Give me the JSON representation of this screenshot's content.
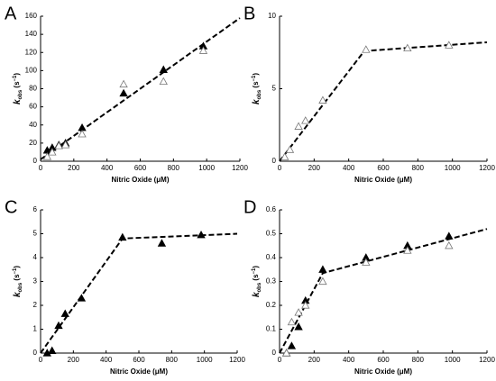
{
  "chart_data": [
    {
      "type": "scatter",
      "label": "A",
      "xlabel": "Nitric Oxide (μM)",
      "ylabel_parts": [
        "k",
        "obs",
        " (s",
        "−1",
        ")"
      ],
      "xlim": [
        0,
        1200
      ],
      "xticks": [
        0,
        200,
        400,
        600,
        800,
        1000,
        1200
      ],
      "ylim": [
        0,
        160
      ],
      "yticks": [
        0,
        20,
        40,
        60,
        80,
        100,
        120,
        140,
        160
      ],
      "x": [
        40,
        70,
        110,
        150,
        250,
        500,
        740,
        980
      ],
      "series": [
        {
          "marker": "filled",
          "color": "#000000",
          "values": [
            12,
            15,
            18,
            20,
            37,
            75,
            101,
            127
          ]
        },
        {
          "marker": "open",
          "color": "#777777",
          "values": [
            5,
            10,
            17,
            18,
            30,
            85,
            88,
            122
          ]
        }
      ],
      "fit": {
        "color": "#000000",
        "x": [
          0,
          1200
        ],
        "values": [
          2,
          158
        ]
      }
    },
    {
      "type": "scatter",
      "label": "B",
      "xlabel": "Nitric Oxide (μM)",
      "ylabel_parts": [
        "k",
        "obs",
        " (s",
        "−1",
        ")"
      ],
      "xlim": [
        0,
        1200
      ],
      "xticks": [
        0,
        200,
        400,
        600,
        800,
        1000,
        1200
      ],
      "ylim": [
        0,
        10
      ],
      "yticks": [
        0,
        5,
        10
      ],
      "x": [
        30,
        60,
        110,
        150,
        250,
        500,
        740,
        980
      ],
      "series": [
        {
          "marker": "open",
          "color": "#777777",
          "values": [
            0.3,
            0.8,
            2.4,
            2.8,
            4.2,
            7.7,
            7.8,
            8.0
          ]
        }
      ],
      "fit": {
        "color": "#000000",
        "x": [
          0,
          490,
          1200
        ],
        "values": [
          0,
          7.6,
          8.2
        ]
      }
    },
    {
      "type": "scatter",
      "label": "C",
      "xlabel": "Nitric Oxide (μM)",
      "ylabel_parts": [
        "k",
        "obs",
        " (s",
        "−1",
        ")"
      ],
      "xlim": [
        0,
        1200
      ],
      "xticks": [
        0,
        200,
        400,
        600,
        800,
        1000,
        1200
      ],
      "ylim": [
        0,
        6
      ],
      "yticks": [
        0,
        1,
        2,
        3,
        4,
        5,
        6
      ],
      "x": [
        40,
        70,
        110,
        150,
        250,
        500,
        740,
        980
      ],
      "series": [
        {
          "marker": "filled",
          "color": "#000000",
          "values": [
            0,
            0.1,
            1.15,
            1.65,
            2.3,
            4.85,
            4.6,
            4.95
          ]
        }
      ],
      "fit": {
        "color": "#000000",
        "x": [
          0,
          500,
          1200
        ],
        "values": [
          0,
          4.8,
          5.0
        ]
      }
    },
    {
      "type": "scatter",
      "label": "D",
      "xlabel": "Nitric Oxide (μM)",
      "ylabel_parts": [
        "k",
        "obs",
        " (s",
        "−1",
        ")"
      ],
      "xlim": [
        0,
        1200
      ],
      "xticks": [
        0,
        200,
        400,
        600,
        800,
        1000,
        1200
      ],
      "ylim": [
        0,
        0.6
      ],
      "yticks": [
        0,
        0.1,
        0.2,
        0.3,
        0.4,
        0.5,
        0.6
      ],
      "x": [
        40,
        70,
        110,
        150,
        250,
        500,
        740,
        980
      ],
      "series": [
        {
          "marker": "filled",
          "color": "#000000",
          "values": [
            0,
            0.03,
            0.11,
            0.22,
            0.35,
            0.4,
            0.45,
            0.49
          ]
        },
        {
          "marker": "open",
          "color": "#777777",
          "values": [
            0,
            0.13,
            0.17,
            0.2,
            0.3,
            0.38,
            0.43,
            0.45
          ]
        }
      ],
      "fit": {
        "color": "#000000",
        "x": [
          0,
          250,
          1200
        ],
        "values": [
          0,
          0.335,
          0.52
        ]
      }
    }
  ]
}
